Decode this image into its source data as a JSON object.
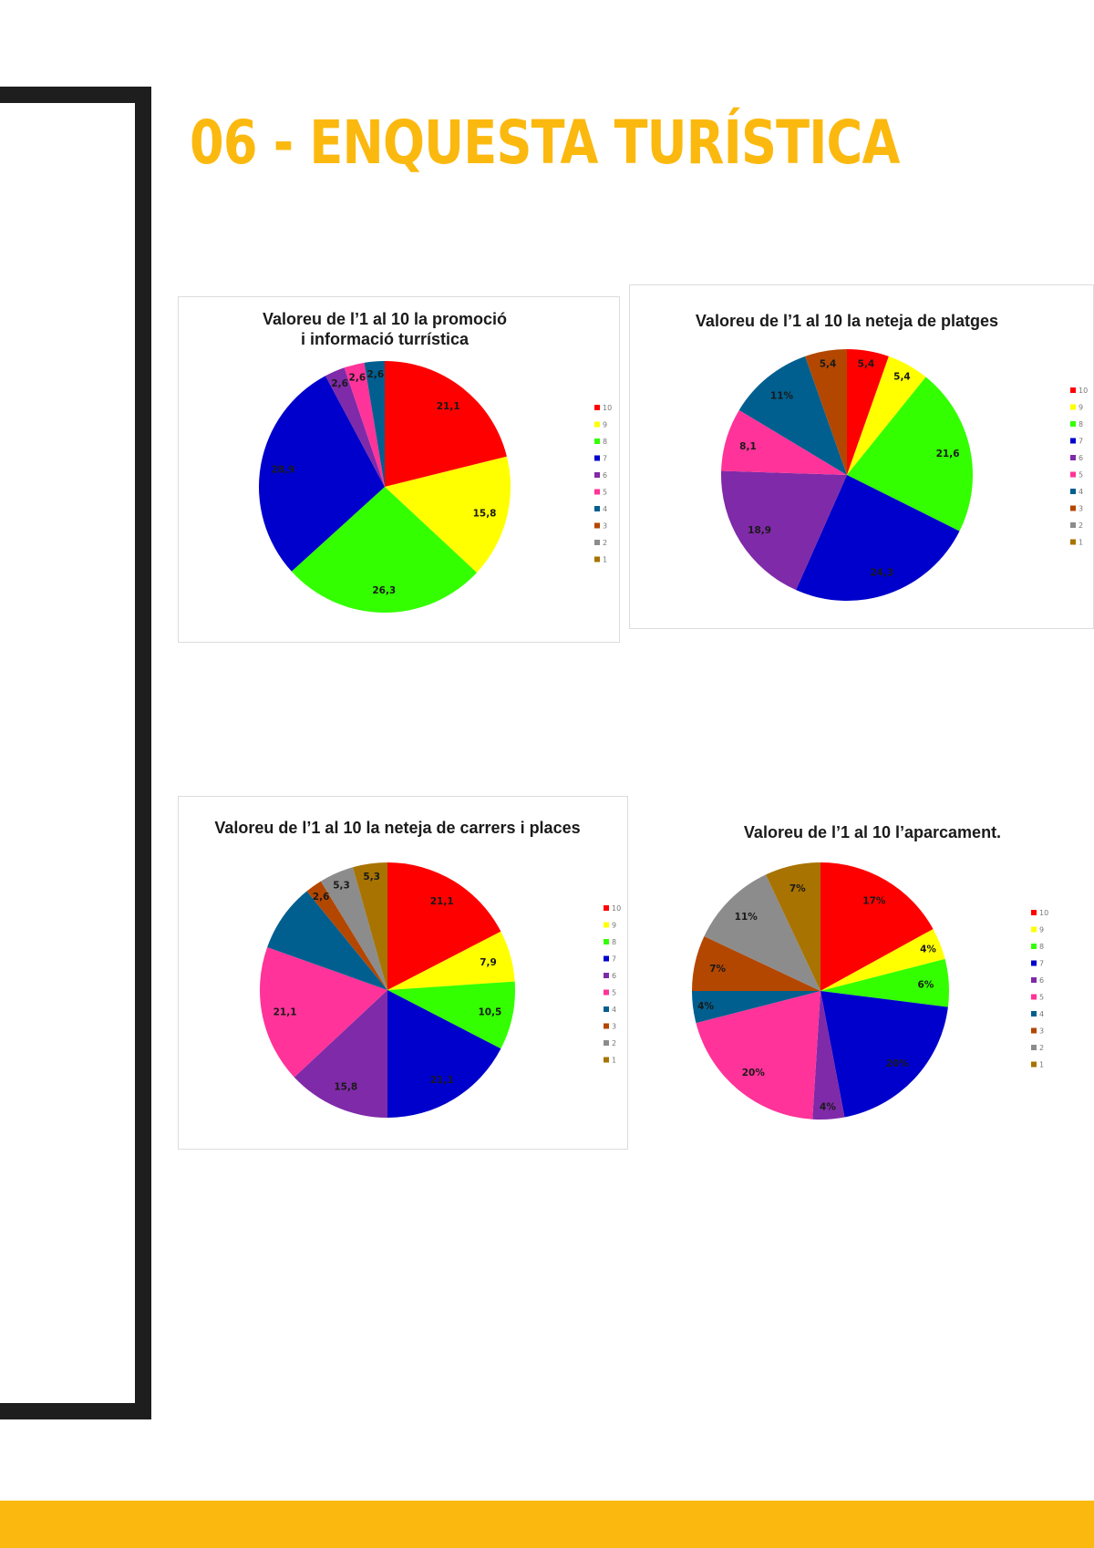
{
  "page": {
    "title": "06 - ENQUESTA TURÍSTICA",
    "accent_color": "#fbb90f",
    "frame_color": "#1e1e1e"
  },
  "chart_data": [
    {
      "type": "pie",
      "title": [
        "Valoreu de l’1 al 10 la promoció",
        "i informació turrística"
      ],
      "categories": [
        "10",
        "9",
        "8",
        "7",
        "6",
        "5",
        "4",
        "3",
        "2",
        "1"
      ],
      "values": [
        21.1,
        15.8,
        26.3,
        28.9,
        2.6,
        2.6,
        2.6,
        0,
        0,
        0
      ],
      "labels": [
        "21,1",
        "15,8",
        "26,3",
        "28,9",
        "2,6",
        "2,6",
        "2,6",
        "",
        "",
        ""
      ],
      "legend": "right"
    },
    {
      "type": "pie",
      "title": [
        "Valoreu de l’1 al 10 la neteja de platges"
      ],
      "categories": [
        "10",
        "9",
        "8",
        "7",
        "6",
        "5",
        "4",
        "3",
        "2",
        "1"
      ],
      "values": [
        5.4,
        5.4,
        21.6,
        24.3,
        18.9,
        8.1,
        11,
        5.4,
        0,
        0
      ],
      "labels": [
        "5,4",
        "5,4",
        "21,6",
        "24,3",
        "18,9",
        "8,1",
        "11%",
        "5,4",
        "",
        ""
      ],
      "legend": "right"
    },
    {
      "type": "pie",
      "title": [
        "Valoreu de l’1 al 10 la neteja de carrers i places"
      ],
      "categories": [
        "10",
        "9",
        "8",
        "7",
        "6",
        "5",
        "4",
        "3",
        "2",
        "1"
      ],
      "values": [
        21.1,
        7.9,
        10.5,
        21.1,
        15.8,
        21.1,
        10.5,
        2.6,
        5.3,
        5.3
      ],
      "labels": [
        "21,1",
        "7,9",
        "10,5",
        "21,1",
        "15,8",
        "21,1",
        "",
        "2,6",
        "5,3",
        "5,3"
      ],
      "legend": "right"
    },
    {
      "type": "pie",
      "title": [
        "Valoreu de l’1 al 10 l’aparcament."
      ],
      "categories": [
        "10",
        "9",
        "8",
        "7",
        "6",
        "5",
        "4",
        "3",
        "2",
        "1"
      ],
      "values": [
        17,
        4,
        6,
        20,
        4,
        20,
        4,
        7,
        11,
        7
      ],
      "labels": [
        "17%",
        "4%",
        "6%",
        "20%",
        "4%",
        "20%",
        "4%",
        "7%",
        "11%",
        "7%"
      ],
      "legend": "right"
    }
  ],
  "colors": [
    "#ff0000",
    "#ffff00",
    "#33ff00",
    "#0000cc",
    "#7f2aa8",
    "#ff3399",
    "#005f8f",
    "#b34700",
    "#8c8c8c",
    "#a87300"
  ]
}
